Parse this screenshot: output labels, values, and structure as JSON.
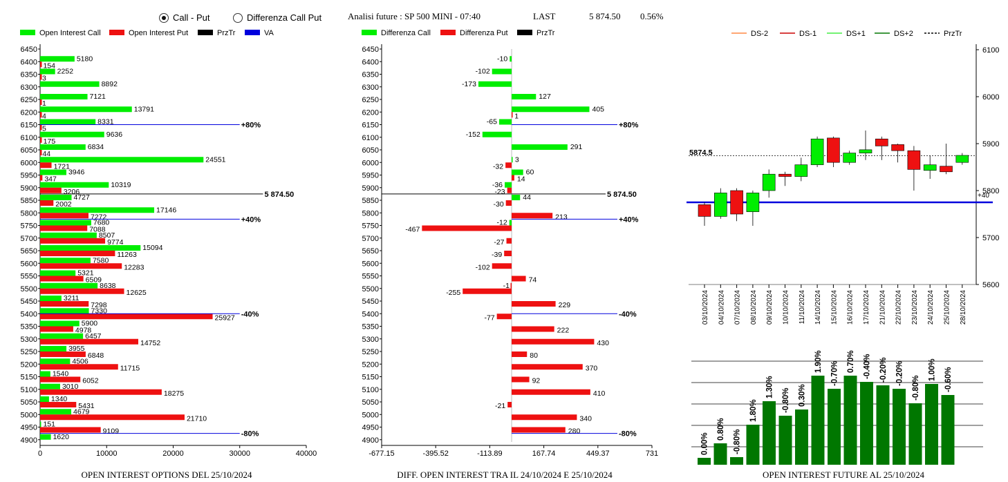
{
  "header": {
    "radio_call_put": "Call - Put",
    "radio_diff": "Differenza Call Put",
    "title": "Analisi future : SP 500 MINI - 07:40",
    "last_label": "LAST",
    "last_value": "5 874.50",
    "last_change": "0.56%"
  },
  "colors": {
    "green": "#00ee00",
    "red": "#ee1111",
    "blue": "#0000dd",
    "dark_green": "#007700"
  },
  "chart_data": [
    {
      "id": "oi-options",
      "type": "bar",
      "orientation": "horizontal",
      "caption": "OPEN INTEREST OPTIONS DEL 25/10/2024",
      "legend": [
        "Open Interest Call",
        "Open Interest Put",
        "PrzTr",
        "VA"
      ],
      "strikes": [
        6450,
        6400,
        6350,
        6300,
        6250,
        6200,
        6150,
        6100,
        6050,
        6000,
        5950,
        5900,
        5850,
        5800,
        5750,
        5700,
        5650,
        5600,
        5550,
        5500,
        5450,
        5400,
        5350,
        5300,
        5250,
        5200,
        5150,
        5100,
        5050,
        5000,
        4950,
        4900
      ],
      "call": [
        null,
        5180,
        2252,
        8892,
        7121,
        13791,
        8331,
        9636,
        6834,
        24551,
        3946,
        10319,
        4727,
        17146,
        7680,
        8507,
        15094,
        7580,
        5321,
        8638,
        3211,
        7330,
        5900,
        6457,
        3955,
        4506,
        1540,
        3010,
        1340,
        4679,
        151,
        1620
      ],
      "put": [
        null,
        154,
        3,
        null,
        1,
        4,
        5,
        175,
        44,
        1721,
        347,
        3206,
        2002,
        7272,
        7088,
        9774,
        11263,
        12283,
        6509,
        12625,
        7298,
        25927,
        4978,
        14752,
        6848,
        11715,
        6052,
        18275,
        5431,
        21710,
        9109,
        null
      ],
      "xticks": [
        "0",
        "10000",
        "20000",
        "30000",
        "40000"
      ],
      "xmax": 40000,
      "markers": [
        {
          "strike": 6150,
          "label": "+80%",
          "color": "blue",
          "end": 30000
        },
        {
          "strike": 5875,
          "label": "5 874.50",
          "color": "black",
          "end": 33500
        },
        {
          "strike": 5775,
          "label": "+40%",
          "color": "blue",
          "end": 30000
        },
        {
          "strike": 5400,
          "label": "-40%",
          "color": "blue",
          "end": 30000
        },
        {
          "strike": 4925,
          "label": "-80%",
          "color": "blue",
          "end": 30000
        }
      ]
    },
    {
      "id": "oi-diff",
      "type": "bar",
      "orientation": "horizontal",
      "caption": "DIFF. OPEN INTEREST TRA IL 24/10/2024 E 25/10/2024",
      "legend": [
        "Differenza Call",
        "Differenza Put",
        "PrzTr"
      ],
      "strikes": [
        6450,
        6400,
        6350,
        6300,
        6250,
        6200,
        6150,
        6100,
        6050,
        6000,
        5950,
        5900,
        5850,
        5800,
        5750,
        5700,
        5650,
        5600,
        5550,
        5500,
        5450,
        5400,
        5350,
        5300,
        5250,
        5200,
        5150,
        5100,
        5050,
        5000,
        4950,
        4900
      ],
      "call": [
        null,
        -10,
        -102,
        -173,
        127,
        405,
        -65,
        -152,
        291,
        3,
        60,
        -36,
        44,
        null,
        -12,
        null,
        null,
        null,
        null,
        null,
        null,
        null,
        null,
        null,
        null,
        null,
        null,
        null,
        null,
        null,
        null,
        null
      ],
      "put": [
        null,
        null,
        null,
        null,
        null,
        1,
        null,
        null,
        null,
        -32,
        14,
        -23,
        -30,
        213,
        -467,
        -27,
        -39,
        -102,
        74,
        -255,
        229,
        -77,
        222,
        430,
        80,
        370,
        92,
        410,
        -21,
        340,
        280,
        null
      ],
      "put_extra": [
        {
          "strike": 5500,
          "value": -1
        }
      ],
      "xticks": [
        "-677.15",
        "-395.52",
        "-113.89",
        "167.74",
        "449.37",
        "731"
      ],
      "xmin": -677.15,
      "xmax": 731,
      "markers": [
        {
          "strike": 6150,
          "label": "+80%",
          "color": "blue"
        },
        {
          "strike": 5875,
          "label": "5 874.50",
          "color": "black"
        },
        {
          "strike": 5775,
          "label": "+40%",
          "color": "blue"
        },
        {
          "strike": 5400,
          "label": "-40%",
          "color": "blue"
        },
        {
          "strike": 4925,
          "label": "-80%",
          "color": "blue"
        }
      ]
    },
    {
      "id": "future-candles",
      "type": "candlestick",
      "legend": [
        "DS-2",
        "DS-1",
        "DS+1",
        "DS+2",
        "PrzTr"
      ],
      "yticks": [
        5600,
        5700,
        5800,
        5900,
        6000,
        6100
      ],
      "ylim": [
        5600,
        6100
      ],
      "last_label": "5874.5",
      "last_value": 5874.5,
      "va_label": "+40",
      "va_value": 5775,
      "dates": [
        "03/10/2024",
        "04/10/2024",
        "07/10/2024",
        "08/10/2024",
        "09/10/2024",
        "10/10/2024",
        "11/10/2024",
        "14/10/2024",
        "15/10/2024",
        "16/10/2024",
        "17/10/2024",
        "21/10/2024",
        "22/10/2024",
        "23/10/2024",
        "24/10/2024",
        "25/10/2024",
        "28/10/2024"
      ],
      "candles": [
        {
          "o": 5770,
          "c": 5745,
          "h": 5775,
          "l": 5725
        },
        {
          "o": 5745,
          "c": 5795,
          "h": 5805,
          "l": 5740
        },
        {
          "o": 5800,
          "c": 5750,
          "h": 5805,
          "l": 5735
        },
        {
          "o": 5755,
          "c": 5795,
          "h": 5800,
          "l": 5725
        },
        {
          "o": 5800,
          "c": 5835,
          "h": 5845,
          "l": 5785
        },
        {
          "o": 5835,
          "c": 5830,
          "h": 5840,
          "l": 5810
        },
        {
          "o": 5830,
          "c": 5855,
          "h": 5870,
          "l": 5820
        },
        {
          "o": 5855,
          "c": 5910,
          "h": 5915,
          "l": 5850
        },
        {
          "o": 5912,
          "c": 5860,
          "h": 5915,
          "l": 5850
        },
        {
          "o": 5860,
          "c": 5880,
          "h": 5885,
          "l": 5855
        },
        {
          "o": 5880,
          "c": 5887,
          "h": 5928,
          "l": 5865
        },
        {
          "o": 5910,
          "c": 5895,
          "h": 5915,
          "l": 5865
        },
        {
          "o": 5898,
          "c": 5885,
          "h": 5900,
          "l": 5860
        },
        {
          "o": 5885,
          "c": 5845,
          "h": 5895,
          "l": 5800
        },
        {
          "o": 5843,
          "c": 5855,
          "h": 5875,
          "l": 5825
        },
        {
          "o": 5852,
          "c": 5840,
          "h": 5900,
          "l": 5835
        },
        {
          "o": 5860,
          "c": 5875,
          "h": 5880,
          "l": 5855
        }
      ]
    },
    {
      "id": "oi-future",
      "type": "bar",
      "caption": "OPEN INTEREST FUTURE AL 25/10/2024",
      "labels": [
        "0.00%",
        "0.80%",
        "-0.80%",
        "1.80%",
        "1.30%",
        "-0.80%",
        "0.30%",
        "1.90%",
        "-0.70%",
        "0.70%",
        "-0.40%",
        "-0.20%",
        "-0.20%",
        "-0.80%",
        "1.00%",
        "-0.60%"
      ],
      "values": [
        10,
        31,
        11,
        58,
        92,
        71,
        80,
        129,
        110,
        129,
        120,
        115,
        110,
        89,
        117,
        101
      ]
    }
  ]
}
